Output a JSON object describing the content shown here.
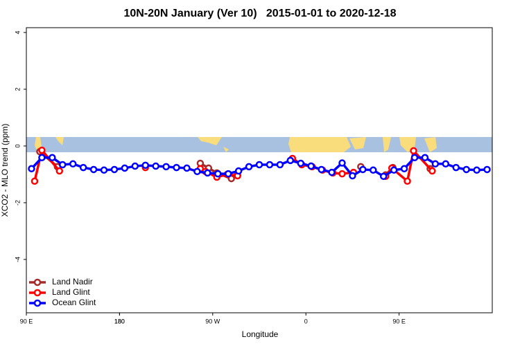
{
  "chart_data": {
    "type": "line",
    "title": "10N-20N January (Ver 10)   2015-01-01 to 2020-12-18",
    "x_label": "Longitude",
    "y_label": "XCO2 - MLO trend (ppm)",
    "xlim": [
      90,
      540
    ],
    "xticks": [
      {
        "value": 90,
        "label": "90 E"
      },
      180,
      {
        "value": 270,
        "label": "90 W"
      },
      {
        "value": 360,
        "label": "0"
      },
      {
        "value": 450,
        "label": "90 E"
      },
      180.0001
    ],
    "ylim": [
      -5.88,
      4.17
    ],
    "yticks": [
      -4,
      -2,
      0,
      2,
      4
    ],
    "legend": "bottom-left",
    "series": [
      {
        "name": "Land Nadir",
        "color": "#a52a2a",
        "x": [
          103,
          120,
          200,
          258,
          266,
          274,
          288,
          294,
          330,
          365,
          390,
          413,
          425,
          437,
          444,
          460,
          480
        ],
        "values": [
          -0.2,
          -0.73,
          null,
          -0.61,
          -0.78,
          -0.95,
          -1.15,
          -1.02,
          null,
          -0.71,
          null,
          -0.73,
          null,
          -1.02,
          -0.76,
          null,
          -0.8
        ]
      },
      {
        "name": "Land Glint",
        "color": "#ff0000",
        "x": [
          98,
          105,
          122,
          160,
          205,
          230,
          258,
          263,
          274,
          284,
          294,
          320,
          347,
          356,
          366,
          376,
          386,
          395,
          406,
          420,
          437,
          443,
          458,
          464,
          482
        ],
        "values": [
          -1.24,
          -0.15,
          -0.88,
          null,
          -0.76,
          null,
          -0.8,
          -0.9,
          -1.1,
          -1.0,
          -1.05,
          null,
          -0.44,
          -0.66,
          -0.73,
          -0.85,
          -0.95,
          -0.98,
          -0.93,
          null,
          -1.07,
          -0.78,
          -1.24,
          -0.17,
          -0.88
        ]
      },
      {
        "name": "Ocean Glint",
        "color": "#0000ff",
        "x": [
          95,
          105,
          115,
          125,
          135,
          145,
          155,
          165,
          175,
          185,
          195,
          205,
          215,
          225,
          235,
          245,
          255,
          265,
          275,
          285,
          295,
          305,
          315,
          325,
          335,
          345,
          355,
          365,
          375,
          385,
          395,
          405,
          415,
          425,
          435,
          445,
          455,
          465,
          475,
          485,
          495,
          505,
          515,
          525,
          535
        ],
        "values": [
          -0.8,
          -0.41,
          -0.41,
          -0.66,
          -0.63,
          -0.76,
          -0.83,
          -0.85,
          -0.83,
          -0.78,
          -0.71,
          -0.68,
          -0.71,
          -0.73,
          -0.76,
          -0.78,
          -0.9,
          -0.95,
          -0.98,
          -0.98,
          -0.88,
          -0.73,
          -0.66,
          -0.66,
          -0.66,
          -0.51,
          -0.61,
          -0.71,
          -0.83,
          -0.93,
          -0.6,
          -1.05,
          -0.83,
          -0.85,
          -1.07,
          -0.85,
          -0.8,
          -0.41,
          -0.41,
          -0.63,
          -0.63,
          -0.76,
          -0.83,
          -0.85,
          -0.83
        ]
      }
    ]
  }
}
